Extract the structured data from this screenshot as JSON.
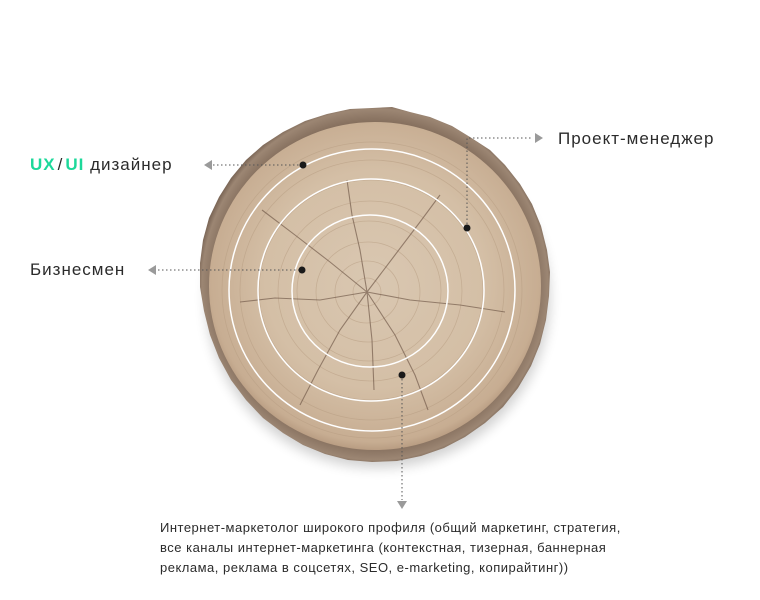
{
  "roles": {
    "ux_prefix": "UX",
    "ui_prefix": "UI",
    "slash": "/",
    "designer_suffix": "дизайнер",
    "project_manager": "Проект-менеджер",
    "businessman": "Бизнесмен",
    "marketer_lines": [
      "Интернет-маркетолог широкого профиля (общий маркетинг, стратегия,",
      "все каналы интернет-маркетинга (контекстная, тизерная, баннерная",
      "реклама, реклама в соцсетях, SEO, e-marketing, копирайтинг))"
    ]
  },
  "icons": {
    "wood_slice": "tree-ring-slice",
    "pointer": "triangle-arrow"
  },
  "colors": {
    "accent": "#1dd89a",
    "text": "#2b2b2b",
    "wood": "#d8c5ae",
    "bark": "#8a7563",
    "ring": "#ffffff",
    "dot": "#1a1a1a"
  }
}
